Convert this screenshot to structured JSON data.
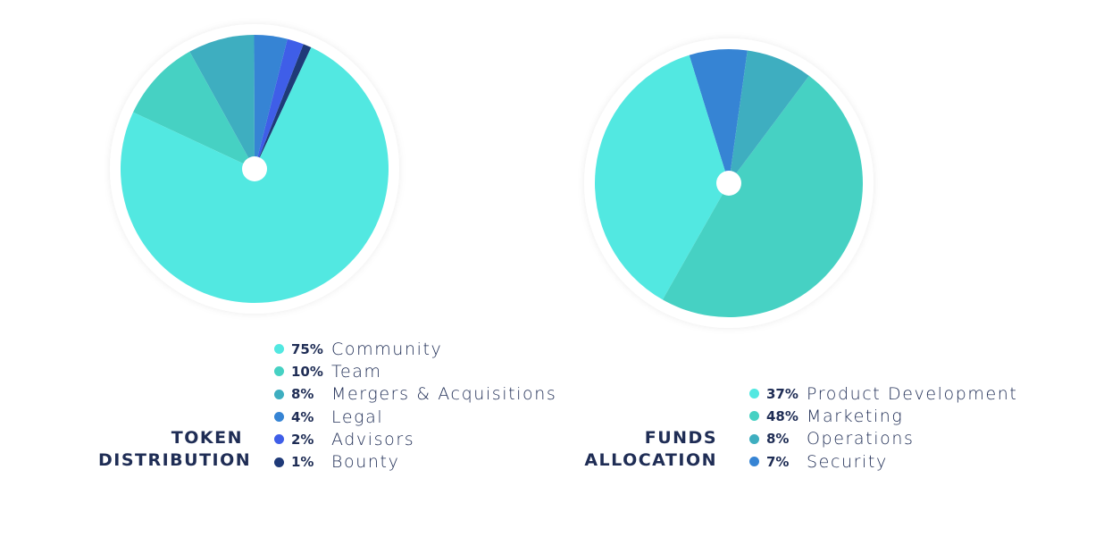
{
  "chart_data": [
    {
      "type": "pie",
      "title_lines": [
        "TOKEN",
        "DISTRIBUTION"
      ],
      "slices": [
        {
          "label": "Community",
          "pct_label": "75%",
          "value": 75,
          "color": "#52e8e1"
        },
        {
          "label": "Team",
          "pct_label": "10%",
          "value": 10,
          "color": "#46d1c3"
        },
        {
          "label": "Mergers & Acquisitions",
          "pct_label": "8%",
          "value": 8,
          "color": "#3eaec0"
        },
        {
          "label": "Legal",
          "pct_label": "4%",
          "value": 4,
          "color": "#3684d4"
        },
        {
          "label": "Advisors",
          "pct_label": "2%",
          "value": 2,
          "color": "#3f5ee8"
        },
        {
          "label": "Bounty",
          "pct_label": "1%",
          "value": 1,
          "color": "#1f3a78"
        }
      ],
      "pie_order": [
        "Bounty",
        "Advisors",
        "Legal",
        "Mergers & Acquisitions",
        "Team",
        "Community"
      ],
      "start_angle_deg": 25
    },
    {
      "type": "pie",
      "title_lines": [
        "FUNDS",
        "ALLOCATION"
      ],
      "slices": [
        {
          "label": "Product Development",
          "pct_label": "37%",
          "value": 37,
          "color": "#52e8e1"
        },
        {
          "label": "Marketing",
          "pct_label": "48%",
          "value": 48,
          "color": "#46d1c3"
        },
        {
          "label": "Operations",
          "pct_label": "8%",
          "value": 8,
          "color": "#3eaec0"
        },
        {
          "label": "Security",
          "pct_label": "7%",
          "value": 7,
          "color": "#3684d4"
        }
      ],
      "pie_order": [
        "Security",
        "Product Development",
        "Marketing",
        "Operations"
      ],
      "start_angle_deg": 8
    }
  ]
}
